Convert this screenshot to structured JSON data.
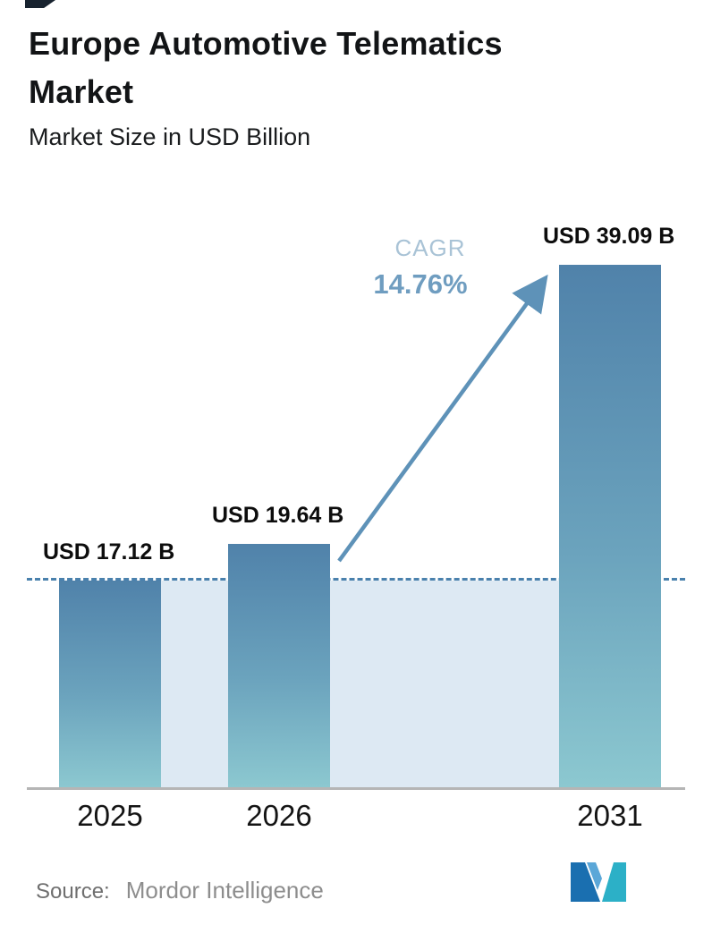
{
  "header": {
    "title": "Europe Automotive Telematics Market",
    "subtitle": "Market Size in USD Billion"
  },
  "chart_data": {
    "type": "bar",
    "title": "Europe Automotive Telematics Market",
    "subtitle": "Market Size in USD Billion",
    "ylabel": "Market Size (USD Billion)",
    "xlabel": "",
    "categories": [
      "2025",
      "2026",
      "2031"
    ],
    "values": [
      17.12,
      19.64,
      39.09
    ],
    "value_labels": [
      "USD 17.12 B",
      "USD 19.64 B",
      "USD 39.09 B"
    ],
    "annotations": {
      "cagr_label": "CAGR",
      "cagr_value": "14.76%",
      "baseline_dashed_at_value": 17.12
    },
    "layout_hints": {
      "grid": "off",
      "legend": "none",
      "baseline_shade": true
    },
    "colors": {
      "bar_gradient_top": "#5082aa",
      "bar_gradient_bottom": "#8cc8d0",
      "shade_region": "#dde9f3",
      "dashed_line": "#4a81ad",
      "cagr_label": "#a9c3d6",
      "cagr_value": "#6f9dc0",
      "arrow": "#5e92b8",
      "axis": "#b5b5b5"
    }
  },
  "footer": {
    "source_label": "Source:",
    "source_value": "Mordor Intelligence",
    "logo": "mordor-intelligence-logo"
  }
}
